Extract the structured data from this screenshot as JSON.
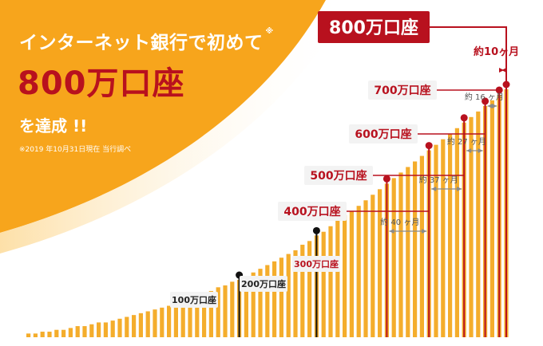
{
  "headline": {
    "title": "インターネット銀行で初めて",
    "note_mark": "※",
    "count": "800万口座",
    "achieved": "を達成 !!",
    "footnote": "※2019 年10月31日現在 当行調べ"
  },
  "colors": {
    "background_orange": "#f7a51c",
    "background_light": "#fde7bf",
    "bar": "#f4ad2c",
    "accent_red": "#b8111e",
    "black": "#111111",
    "label_bg": "#f3f3f3",
    "bracket_gray": "#8a8a8a"
  },
  "chart_data": {
    "type": "bar",
    "bar_count": 69,
    "bar_values": [
      2,
      2,
      3,
      3,
      4,
      4,
      5,
      6,
      6,
      7,
      8,
      8,
      9,
      10,
      11,
      12,
      13,
      14,
      15,
      16,
      17,
      18,
      20,
      21,
      22,
      24,
      25,
      27,
      28,
      30,
      31,
      33,
      35,
      37,
      39,
      41,
      43,
      45,
      47,
      50,
      52,
      55,
      57,
      60,
      63,
      66,
      68,
      71,
      74,
      77,
      80,
      83,
      86,
      89,
      92,
      95,
      98,
      101,
      104,
      107,
      110,
      113,
      116,
      119,
      122,
      125,
      128,
      131,
      134
    ],
    "milestones": [
      {
        "label": "100万口座",
        "bar_index": 30,
        "color": "black"
      },
      {
        "label": "200万口座",
        "bar_index": 41,
        "color": "black"
      },
      {
        "label": "300万口座",
        "bar_index": 51,
        "color": "red"
      },
      {
        "label": "400万口座",
        "bar_index": 57,
        "color": "red"
      },
      {
        "label": "500万口座",
        "bar_index": 62,
        "color": "red"
      },
      {
        "label": "600万口座",
        "bar_index": 65,
        "color": "red"
      },
      {
        "label": "700万口座",
        "bar_index": 67,
        "color": "red"
      },
      {
        "label": "800万口座",
        "bar_index": 68,
        "color": "red",
        "highlight": true
      }
    ],
    "intervals": [
      {
        "label": "約 40 ヶ月",
        "from": 2,
        "to": 3
      },
      {
        "label": "約 37 ヶ月",
        "from": 3,
        "to": 4
      },
      {
        "label": "約 27 ヶ月",
        "from": 4,
        "to": 5
      },
      {
        "label": "約 16 ヶ月",
        "from": 5,
        "to": 6
      },
      {
        "label": "約10ヶ月",
        "from": 6,
        "to": 7,
        "highlight": true
      }
    ]
  }
}
